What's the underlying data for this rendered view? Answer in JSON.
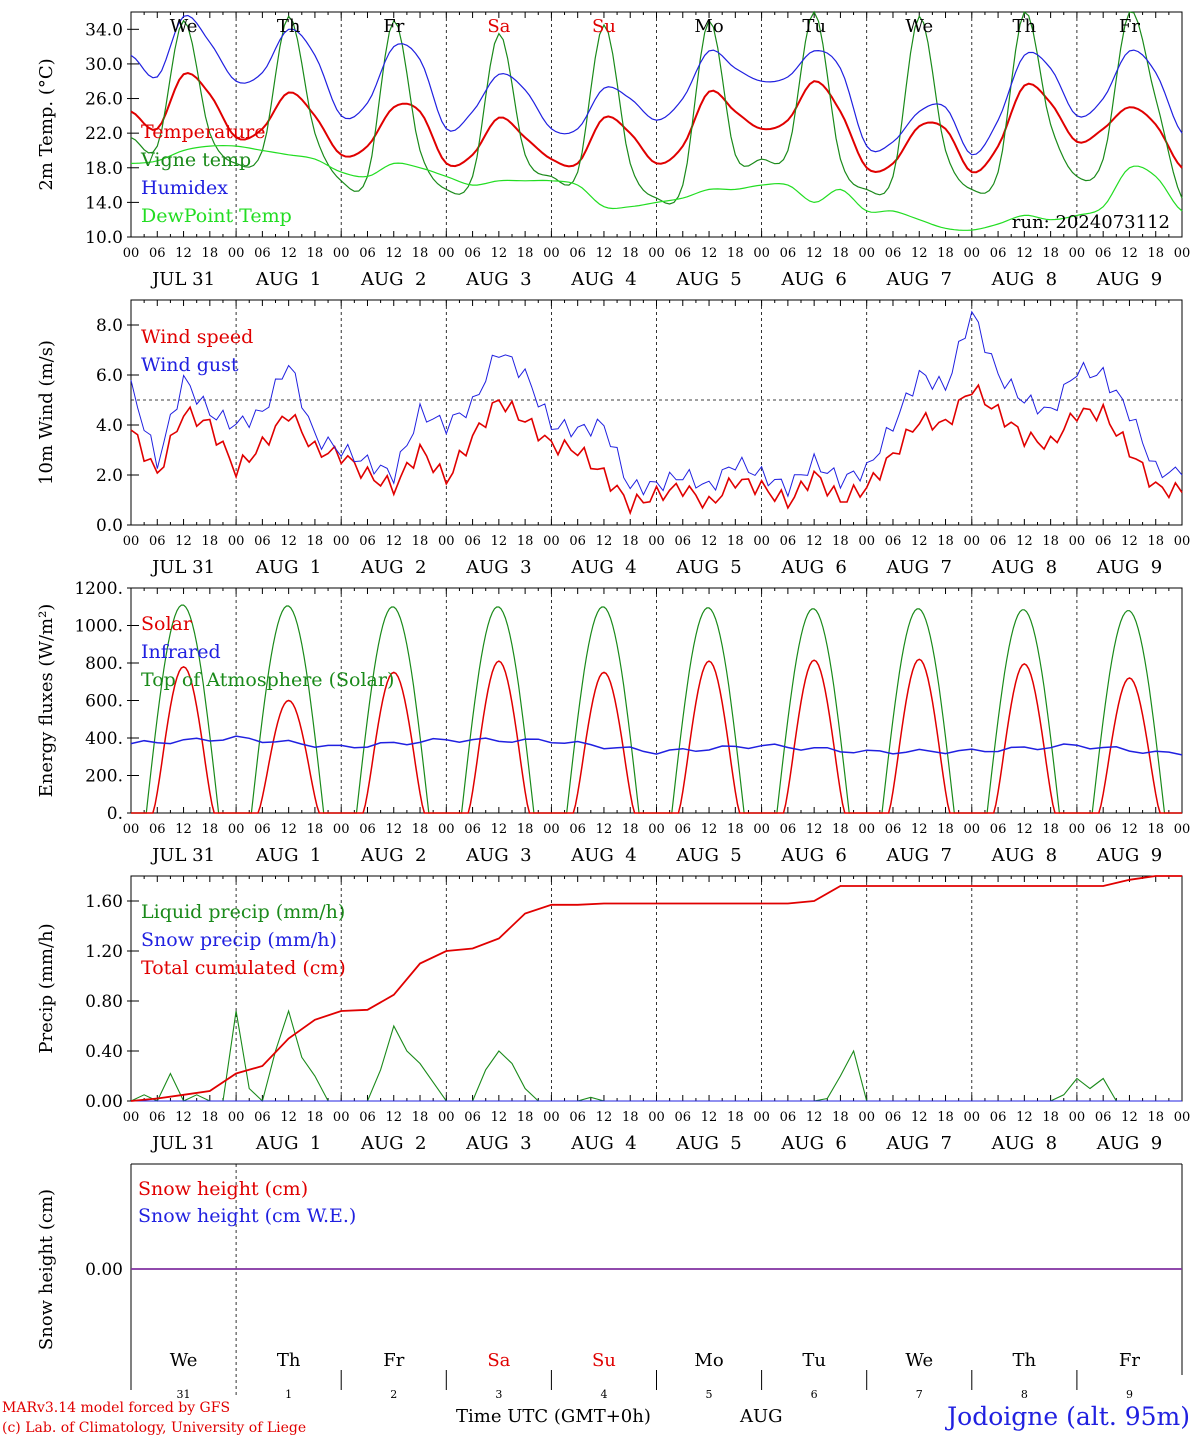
{
  "run_label": "run: 2024073112",
  "hour_ticks": [
    "00",
    "06",
    "12",
    "18"
  ],
  "end_hour": "00",
  "dates": [
    "JUL 31",
    "AUG  1",
    "AUG  2",
    "AUG  3",
    "AUG  4",
    "AUG  5",
    "AUG  6",
    "AUG  7",
    "AUG  8",
    "AUG  9"
  ],
  "day_numbers": [
    "31",
    "1",
    "2",
    "3",
    "4",
    "5",
    "6",
    "7",
    "8",
    "9"
  ],
  "weekdays": [
    {
      "label": "We",
      "color": "#000000"
    },
    {
      "label": "Th",
      "color": "#000000"
    },
    {
      "label": "Fr",
      "color": "#000000"
    },
    {
      "label": "Sa",
      "color": "#e00000"
    },
    {
      "label": "Su",
      "color": "#e00000"
    },
    {
      "label": "Mo",
      "color": "#000000"
    },
    {
      "label": "Tu",
      "color": "#000000"
    },
    {
      "label": "We",
      "color": "#000000"
    },
    {
      "label": "Th",
      "color": "#000000"
    },
    {
      "label": "Fr",
      "color": "#000000"
    }
  ],
  "footer": {
    "model": "MARv3.14 model forced by GFS",
    "lab": "(c) Lab. of Climatology, University of Liege",
    "time_axis": "Time UTC (GMT+0h)",
    "month": "AUG",
    "site": "Jodoigne (alt. 95m)"
  },
  "colors": {
    "red": "#e00000",
    "green": "#1a8a1a",
    "blue": "#2020e0",
    "light_green": "#22dd22",
    "purple": "#8030a0"
  },
  "chart_data": [
    {
      "type": "line",
      "ylabel": "2m Temp. (°C)",
      "ylim": [
        10,
        36
      ],
      "yticks": [
        "10.0",
        "14.0",
        "18.0",
        "22.0",
        "26.0",
        "30.0",
        "34.0"
      ],
      "x_unit": "hours since JUL 31 00 UTC",
      "series": [
        {
          "name": "Temperature",
          "color": "#e00000",
          "x": [
            0,
            6,
            12,
            18,
            24,
            30,
            36,
            42,
            48,
            54,
            60,
            66,
            72,
            78,
            84,
            90,
            96,
            102,
            108,
            114,
            120,
            126,
            132,
            138,
            144,
            150,
            156,
            162,
            168,
            174,
            180,
            186,
            192,
            198,
            204,
            210,
            216,
            222,
            228,
            234,
            240
          ],
          "values": [
            24.5,
            22.5,
            28.8,
            26.5,
            21.5,
            22.5,
            26.7,
            24.0,
            19.5,
            20.5,
            25.0,
            24.5,
            18.5,
            19.5,
            23.8,
            21.5,
            19.0,
            18.5,
            23.8,
            22.0,
            18.5,
            20.5,
            26.8,
            24.5,
            22.5,
            23.5,
            28.0,
            24.5,
            18.0,
            18.5,
            22.8,
            22.5,
            17.5,
            20.5,
            27.5,
            25.5,
            21.0,
            22.5,
            25.0,
            23.0,
            18.0
          ]
        },
        {
          "name": "Vigne temp",
          "color": "#1a8a1a",
          "x": [
            0,
            6,
            12,
            18,
            24,
            30,
            36,
            42,
            48,
            54,
            60,
            66,
            72,
            78,
            84,
            90,
            96,
            102,
            108,
            114,
            120,
            126,
            132,
            138,
            144,
            150,
            156,
            162,
            168,
            174,
            180,
            186,
            192,
            198,
            204,
            210,
            216,
            222,
            228,
            234,
            240
          ],
          "values": [
            21.5,
            20.5,
            35.0,
            22.0,
            18.5,
            20.0,
            35.5,
            22.0,
            16.5,
            17.0,
            35.0,
            20.0,
            15.5,
            17.0,
            33.5,
            19.5,
            17.0,
            17.5,
            34.5,
            18.5,
            14.5,
            16.0,
            35.0,
            19.5,
            19.0,
            20.0,
            36.0,
            19.0,
            15.5,
            17.0,
            35.5,
            20.0,
            15.5,
            17.5,
            36.0,
            23.0,
            17.0,
            19.0,
            36.0,
            26.0,
            14.5
          ]
        },
        {
          "name": "Humidex",
          "color": "#2020e0",
          "x": [
            0,
            6,
            12,
            18,
            24,
            30,
            36,
            42,
            48,
            54,
            60,
            66,
            72,
            78,
            84,
            90,
            96,
            102,
            108,
            114,
            120,
            126,
            132,
            138,
            144,
            150,
            156,
            162,
            168,
            174,
            180,
            186,
            192,
            198,
            204,
            210,
            216,
            222,
            228,
            234,
            240
          ],
          "values": [
            31.0,
            28.5,
            35.5,
            32.5,
            28.0,
            29.0,
            34.0,
            31.0,
            24.0,
            25.5,
            32.0,
            30.5,
            22.5,
            24.5,
            28.8,
            27.0,
            22.5,
            22.5,
            27.2,
            26.0,
            23.5,
            26.0,
            31.5,
            29.5,
            28.0,
            28.5,
            31.5,
            29.5,
            20.5,
            21.0,
            24.5,
            25.0,
            19.5,
            23.5,
            31.0,
            29.5,
            24.0,
            26.0,
            31.5,
            29.0,
            22.0
          ]
        },
        {
          "name": "DewPoint Temp",
          "color": "#22dd22",
          "x": [
            0,
            6,
            12,
            18,
            24,
            30,
            36,
            42,
            48,
            54,
            60,
            66,
            72,
            78,
            84,
            90,
            96,
            102,
            108,
            114,
            120,
            126,
            132,
            138,
            144,
            150,
            156,
            162,
            168,
            174,
            180,
            186,
            192,
            198,
            204,
            210,
            216,
            222,
            228,
            234,
            240
          ],
          "values": [
            18.5,
            18.8,
            20.0,
            20.5,
            20.5,
            20.0,
            19.5,
            19.0,
            17.5,
            17.0,
            18.5,
            18.0,
            17.0,
            16.0,
            16.5,
            16.5,
            16.5,
            16.0,
            13.5,
            13.5,
            14.0,
            14.5,
            15.5,
            15.5,
            16.0,
            16.0,
            14.0,
            15.5,
            13.0,
            13.0,
            12.0,
            11.0,
            10.8,
            11.5,
            12.5,
            12.0,
            12.5,
            13.5,
            18.0,
            17.0,
            13.0
          ]
        }
      ]
    },
    {
      "type": "line",
      "ylabel": "10m Wind (m/s)",
      "ylim": [
        0,
        9
      ],
      "yticks": [
        "0.0",
        "2.0",
        "4.0",
        "6.0",
        "8.0"
      ],
      "reference_line": 5.0,
      "x_unit": "hours since JUL 31 00 UTC",
      "series": [
        {
          "name": "Wind speed",
          "color": "#e00000",
          "x": [
            0,
            6,
            12,
            18,
            24,
            30,
            36,
            42,
            48,
            54,
            60,
            66,
            72,
            78,
            84,
            90,
            96,
            102,
            108,
            114,
            120,
            126,
            132,
            138,
            144,
            150,
            156,
            162,
            168,
            174,
            180,
            186,
            192,
            198,
            204,
            210,
            216,
            222,
            228,
            234,
            240
          ],
          "values": [
            3.8,
            2.0,
            4.5,
            4.0,
            2.2,
            3.2,
            4.5,
            3.0,
            2.8,
            2.0,
            1.5,
            3.0,
            1.8,
            3.5,
            5.0,
            4.2,
            3.2,
            3.0,
            2.0,
            0.8,
            1.2,
            1.5,
            0.8,
            1.8,
            1.5,
            0.9,
            2.0,
            1.0,
            1.5,
            2.8,
            4.2,
            4.0,
            5.5,
            4.5,
            3.5,
            3.2,
            4.5,
            4.5,
            3.0,
            1.5,
            1.3
          ]
        },
        {
          "name": "Wind gust",
          "color": "#2020e0",
          "x": [
            0,
            6,
            12,
            18,
            24,
            30,
            36,
            42,
            48,
            54,
            60,
            66,
            72,
            78,
            84,
            90,
            96,
            102,
            108,
            114,
            120,
            126,
            132,
            138,
            144,
            150,
            156,
            162,
            168,
            174,
            180,
            186,
            192,
            198,
            204,
            210,
            216,
            222,
            228,
            234,
            240
          ],
          "values": [
            5.5,
            2.5,
            5.8,
            4.5,
            4.0,
            4.5,
            6.5,
            3.5,
            3.0,
            2.5,
            2.0,
            4.5,
            4.0,
            4.8,
            7.0,
            6.0,
            4.0,
            3.8,
            4.0,
            1.5,
            1.6,
            2.0,
            1.5,
            2.5,
            2.0,
            1.5,
            2.5,
            1.8,
            2.2,
            4.0,
            6.0,
            5.5,
            8.5,
            6.0,
            5.0,
            4.5,
            6.2,
            6.0,
            4.5,
            2.2,
            2.0
          ]
        }
      ]
    },
    {
      "type": "line",
      "ylabel": "Energy fluxes (W/m²)",
      "ylim": [
        0,
        1200
      ],
      "yticks": [
        "0.",
        "200.",
        "400.",
        "600.",
        "800.",
        "1000.",
        "1200."
      ],
      "x_unit": "hours since JUL 31 00 UTC",
      "series": [
        {
          "name": "Solar",
          "color": "#e00000",
          "peaks": [
            780,
            600,
            750,
            810,
            750,
            810,
            815,
            820,
            795,
            720
          ]
        },
        {
          "name": "Infrared",
          "color": "#2020e0",
          "x": [
            0,
            24,
            48,
            72,
            96,
            120,
            144,
            168,
            192,
            216,
            240
          ],
          "values": [
            370,
            400,
            350,
            390,
            385,
            325,
            360,
            325,
            330,
            360,
            310
          ]
        },
        {
          "name": "Top of Atmosphere (Solar)",
          "color": "#1a8a1a",
          "peaks": [
            1110,
            1105,
            1100,
            1100,
            1100,
            1095,
            1090,
            1090,
            1085,
            1080
          ]
        }
      ]
    },
    {
      "type": "line",
      "ylabel": "Precip (mm/h)",
      "ylim": [
        0,
        1.8
      ],
      "yticks": [
        "0.00",
        "0.40",
        "0.80",
        "1.20",
        "1.60"
      ],
      "x_unit": "hours since JUL 31 00 UTC",
      "series": [
        {
          "name": "Liquid precip (mm/h)",
          "color": "#1a8a1a",
          "x": [
            0,
            3,
            6,
            9,
            12,
            15,
            18,
            21,
            24,
            27,
            30,
            33,
            36,
            39,
            42,
            45,
            48,
            51,
            54,
            57,
            60,
            63,
            66,
            69,
            72,
            75,
            78,
            81,
            84,
            87,
            90,
            93,
            96,
            99,
            102,
            105,
            108,
            111,
            114,
            117,
            120,
            150,
            153,
            156,
            159,
            162,
            165,
            168,
            204,
            207,
            210,
            213,
            216,
            219,
            222,
            225,
            228,
            231,
            234,
            237,
            240
          ],
          "values": [
            0,
            0.05,
            0,
            0.22,
            0,
            0.05,
            0,
            0,
            0.72,
            0.1,
            0,
            0.4,
            0.72,
            0.35,
            0.2,
            0,
            0,
            0,
            0,
            0.25,
            0.6,
            0.4,
            0.3,
            0.15,
            0,
            0,
            0,
            0.25,
            0.4,
            0.3,
            0.1,
            0,
            0,
            0,
            0,
            0.03,
            0,
            0,
            0,
            0,
            0,
            0,
            0,
            0,
            0.02,
            0.2,
            0.4,
            0,
            0,
            0,
            0,
            0.05,
            0.18,
            0.1,
            0.18,
            0,
            0,
            0,
            0,
            0,
            0
          ]
        },
        {
          "name": "Snow precip (mm/h)",
          "color": "#2020e0",
          "x": [
            0,
            240
          ],
          "values": [
            0,
            0
          ]
        },
        {
          "name": "Total cumulated (cm)",
          "color": "#e00000",
          "x": [
            0,
            6,
            12,
            18,
            24,
            30,
            36,
            42,
            48,
            54,
            60,
            66,
            72,
            78,
            84,
            90,
            96,
            102,
            108,
            114,
            120,
            126,
            132,
            138,
            144,
            150,
            156,
            162,
            168,
            174,
            180,
            186,
            192,
            198,
            204,
            210,
            216,
            222,
            228,
            234,
            240
          ],
          "values": [
            0,
            0.02,
            0.05,
            0.08,
            0.22,
            0.28,
            0.5,
            0.65,
            0.72,
            0.73,
            0.85,
            1.1,
            1.2,
            1.22,
            1.3,
            1.5,
            1.57,
            1.57,
            1.58,
            1.58,
            1.58,
            1.58,
            1.58,
            1.58,
            1.58,
            1.58,
            1.6,
            1.72,
            1.72,
            1.72,
            1.72,
            1.72,
            1.72,
            1.72,
            1.72,
            1.72,
            1.72,
            1.72,
            1.77,
            1.8,
            1.8
          ]
        }
      ]
    },
    {
      "type": "line",
      "ylabel": "Snow height (cm)",
      "yticks": [
        "0.00"
      ],
      "series": [
        {
          "name": "Snow height (cm)",
          "color": "#e00000",
          "x": [
            0,
            240
          ],
          "values": [
            0,
            0
          ]
        },
        {
          "name": "Snow height (cm W.E.)",
          "color": "#2020e0",
          "x": [
            0,
            240
          ],
          "values": [
            0,
            0
          ]
        }
      ]
    }
  ]
}
